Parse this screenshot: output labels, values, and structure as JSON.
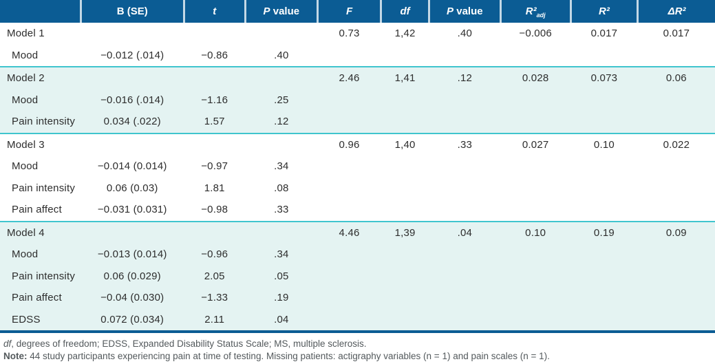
{
  "colors": {
    "header_bg": "#0b5c94",
    "header_separator": "#c3d8e6",
    "shaded_row_bg": "#e4f3f2",
    "group_divider": "#3fc5ce",
    "bottom_border": "#0b5c94",
    "cell_text": "#2d2d2d",
    "footnote_text": "#53595c"
  },
  "table": {
    "headers": [
      {
        "em": "",
        "rest": "",
        "sub": ""
      },
      {
        "em": "",
        "rest": "B (SE)",
        "sub": ""
      },
      {
        "em": "t",
        "rest": "",
        "sub": ""
      },
      {
        "em": "P",
        "rest": " value",
        "sub": ""
      },
      {
        "em": "F",
        "rest": "",
        "sub": ""
      },
      {
        "em": "df",
        "rest": "",
        "sub": ""
      },
      {
        "em": "P",
        "rest": " value",
        "sub": ""
      },
      {
        "em": "R²",
        "rest": "",
        "sub": "adj"
      },
      {
        "em": "R²",
        "rest": "",
        "sub": ""
      },
      {
        "em": "ΔR²",
        "rest": "",
        "sub": ""
      }
    ],
    "groups": [
      {
        "shaded": false,
        "rows": [
          {
            "type": "model",
            "cells": [
              "Model 1",
              "",
              "",
              "",
              "0.73",
              "1,42",
              ".40",
              "−0.006",
              "0.017",
              "0.017"
            ]
          },
          {
            "type": "predictor",
            "cells": [
              "Mood",
              "−0.012 (.014)",
              "−0.86",
              ".40",
              "",
              "",
              "",
              "",
              "",
              ""
            ]
          }
        ]
      },
      {
        "shaded": true,
        "rows": [
          {
            "type": "model",
            "cells": [
              "Model 2",
              "",
              "",
              "",
              "2.46",
              "1,41",
              ".12",
              "0.028",
              "0.073",
              "0.06"
            ]
          },
          {
            "type": "predictor",
            "cells": [
              "Mood",
              "−0.016 (.014)",
              "−1.16",
              ".25",
              "",
              "",
              "",
              "",
              "",
              ""
            ]
          },
          {
            "type": "predictor",
            "cells": [
              "Pain intensity",
              "0.034 (.022)",
              "1.57",
              ".12",
              "",
              "",
              "",
              "",
              "",
              ""
            ]
          }
        ]
      },
      {
        "shaded": false,
        "rows": [
          {
            "type": "model",
            "cells": [
              "Model 3",
              "",
              "",
              "",
              "0.96",
              "1,40",
              ".33",
              "0.027",
              "0.10",
              "0.022"
            ]
          },
          {
            "type": "predictor",
            "cells": [
              "Mood",
              "−0.014 (0.014)",
              "−0.97",
              ".34",
              "",
              "",
              "",
              "",
              "",
              ""
            ]
          },
          {
            "type": "predictor",
            "cells": [
              "Pain intensity",
              "0.06 (0.03)",
              "1.81",
              ".08",
              "",
              "",
              "",
              "",
              "",
              ""
            ]
          },
          {
            "type": "predictor",
            "cells": [
              "Pain affect",
              "−0.031 (0.031)",
              "−0.98",
              ".33",
              "",
              "",
              "",
              "",
              "",
              ""
            ]
          }
        ]
      },
      {
        "shaded": true,
        "rows": [
          {
            "type": "model",
            "cells": [
              "Model 4",
              "",
              "",
              "",
              "4.46",
              "1,39",
              ".04",
              "0.10",
              "0.19",
              "0.09"
            ]
          },
          {
            "type": "predictor",
            "cells": [
              "Mood",
              "−0.013 (0.014)",
              "−0.96",
              ".34",
              "",
              "",
              "",
              "",
              "",
              ""
            ]
          },
          {
            "type": "predictor",
            "cells": [
              "Pain intensity",
              "0.06 (0.029)",
              "2.05",
              ".05",
              "",
              "",
              "",
              "",
              "",
              ""
            ]
          },
          {
            "type": "predictor",
            "cells": [
              "Pain affect",
              "−0.04 (0.030)",
              "−1.33",
              ".19",
              "",
              "",
              "",
              "",
              "",
              ""
            ]
          },
          {
            "type": "predictor",
            "cells": [
              "EDSS",
              "0.072 (0.034)",
              "2.11",
              ".04",
              "",
              "",
              "",
              "",
              "",
              ""
            ]
          }
        ]
      }
    ]
  },
  "footnotes": {
    "abbrev_em": "df",
    "abbrev_rest": ", degrees of freedom; EDSS, Expanded Disability Status Scale; MS, multiple sclerosis.",
    "note_label": "Note:",
    "note_rest": " 44 study participants experiencing pain at time of testing. Missing patients: actigraphy variables (n = 1) and pain scales (n = 1)."
  }
}
